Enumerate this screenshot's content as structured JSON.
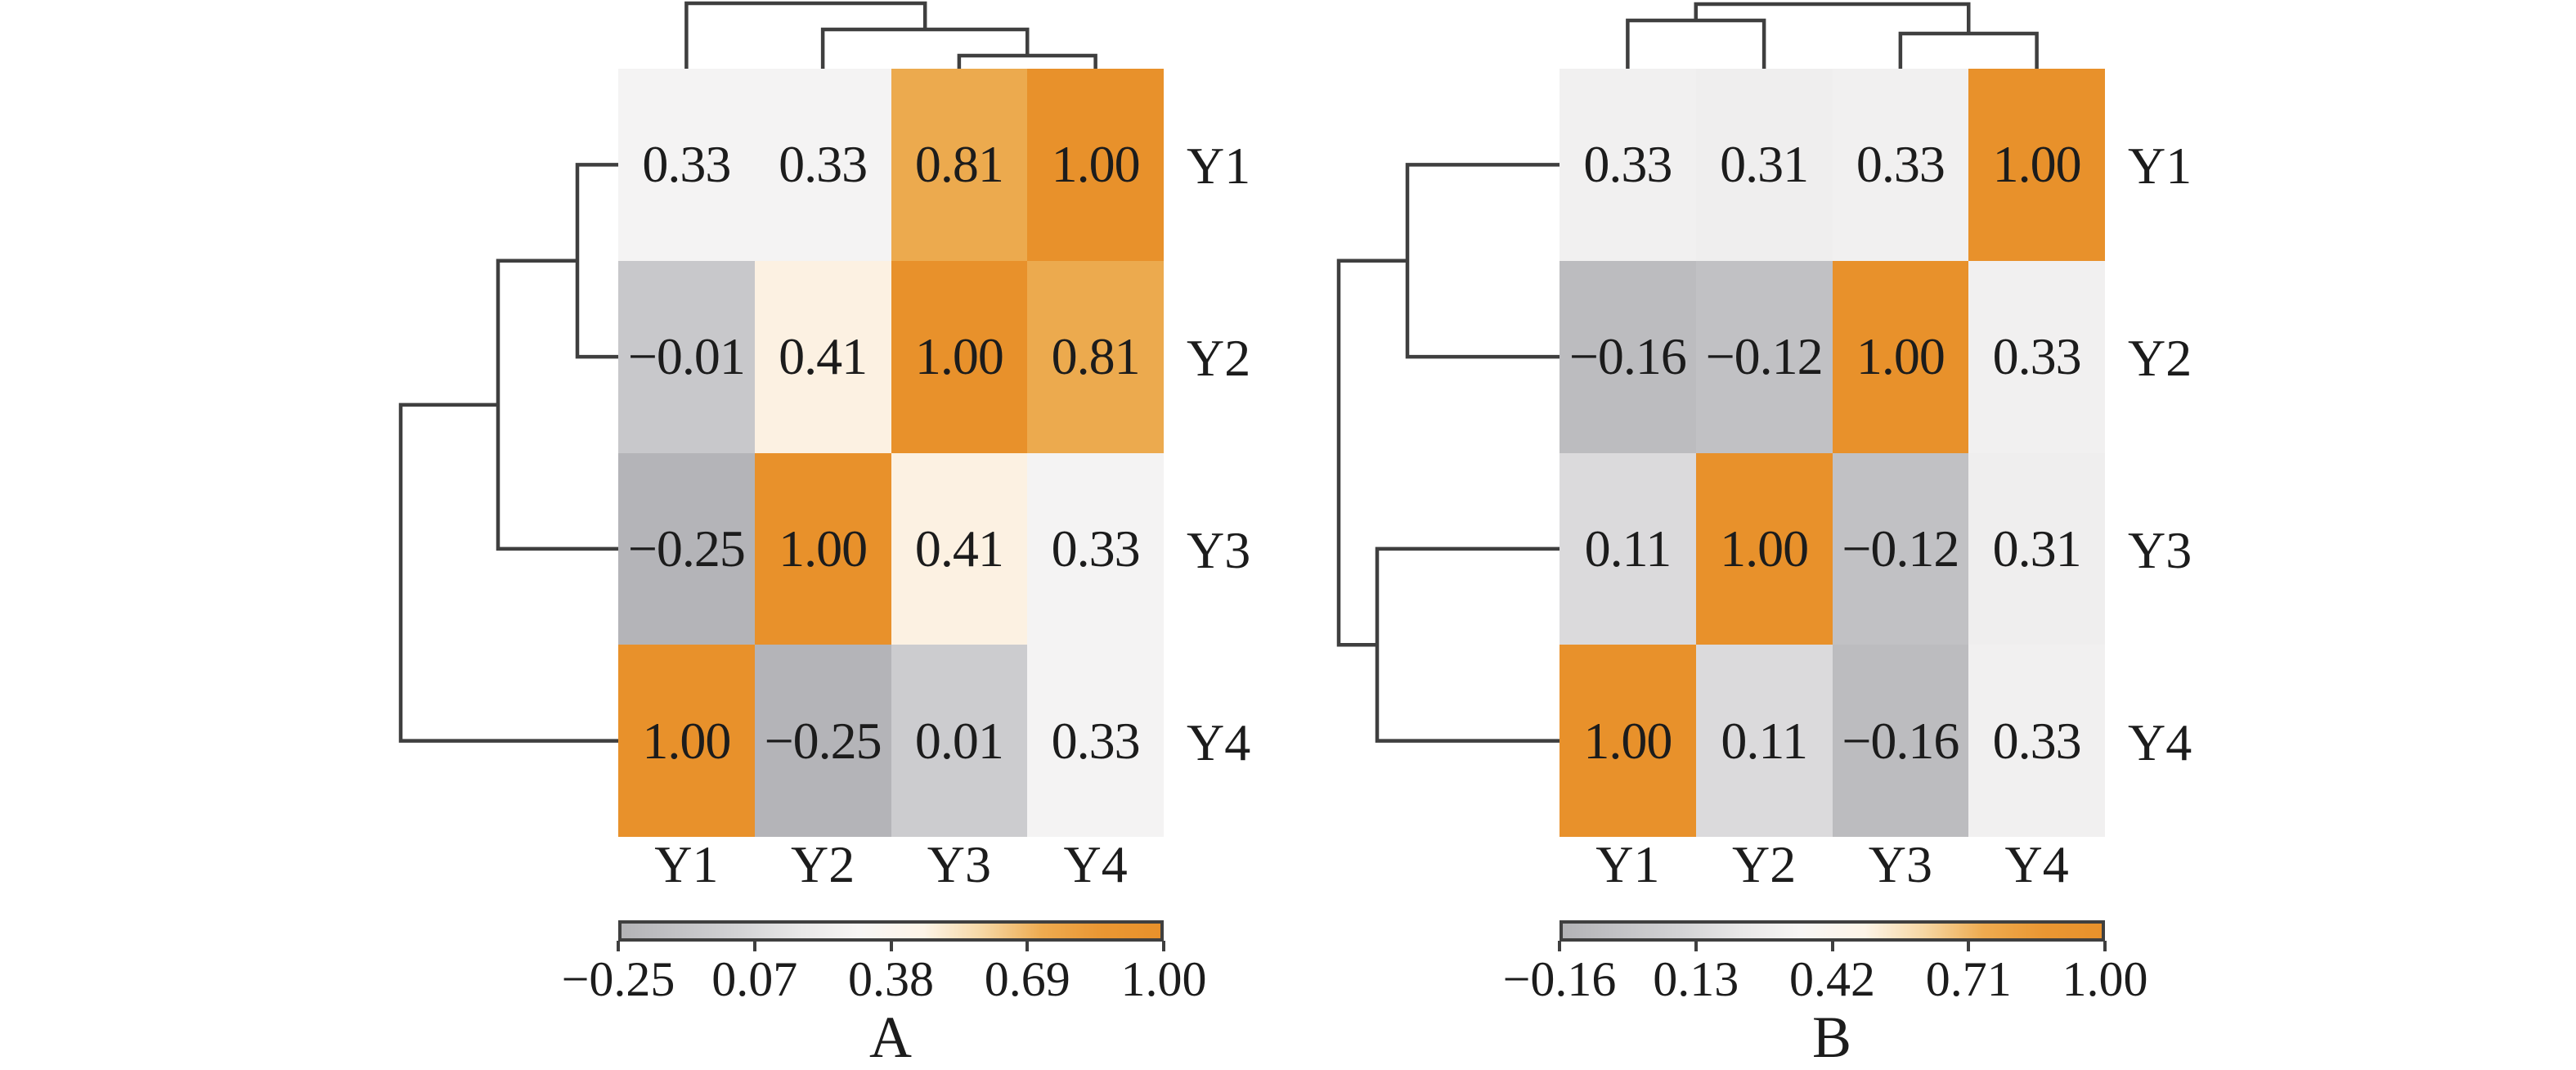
{
  "figure": {
    "background": "#ffffff",
    "line_color": "#3f3f3f",
    "text_color": "#1c1c1c",
    "colorbar_gradient": [
      "#b3b3b6",
      "#c3c3c6",
      "#d3d3d5",
      "#e8e7e7",
      "#f7f5f4",
      "#fdf4e7",
      "#f6d7a4",
      "#eeab50",
      "#ea9733",
      "#e8912b"
    ],
    "panels": [
      {
        "id": "A",
        "label": "A",
        "row_labels": [
          "Y1",
          "Y2",
          "Y3",
          "Y4"
        ],
        "col_labels": [
          "Y1",
          "Y2",
          "Y3",
          "Y4"
        ],
        "cells": [
          [
            "0.33",
            "0.33",
            "0.81",
            "1.00"
          ],
          [
            "−0.01",
            "0.41",
            "1.00",
            "0.81"
          ],
          [
            "−0.25",
            "1.00",
            "0.41",
            "0.33"
          ],
          [
            "1.00",
            "−0.25",
            "0.01",
            "0.33"
          ]
        ],
        "value_colors": {
          "1.00": "#e8912b",
          "0.81": "#ecaa4e",
          "0.41": "#fcf1e2",
          "0.33": "#f4f3f3",
          "0.01": "#cccccf",
          "−0.01": "#c8c8cb",
          "−0.25": "#b4b4b8"
        },
        "colorbar_ticks": [
          "−0.25",
          "0.07",
          "0.38",
          "0.69",
          "1.00"
        ]
      },
      {
        "id": "B",
        "label": "B",
        "row_labels": [
          "Y1",
          "Y2",
          "Y3",
          "Y4"
        ],
        "col_labels": [
          "Y1",
          "Y2",
          "Y3",
          "Y4"
        ],
        "cells": [
          [
            "0.33",
            "0.31",
            "0.33",
            "1.00"
          ],
          [
            "−0.16",
            "−0.12",
            "1.00",
            "0.33"
          ],
          [
            "0.11",
            "1.00",
            "−0.12",
            "0.31"
          ],
          [
            "1.00",
            "0.11",
            "−0.16",
            "0.33"
          ]
        ],
        "value_colors": {
          "1.00": "#e8912b",
          "0.33": "#f1f0f0",
          "0.31": "#efeeee",
          "0.11": "#dbdadc",
          "−0.12": "#c1c1c4",
          "−0.16": "#bcbcbf"
        },
        "colorbar_ticks": [
          "−0.16",
          "0.13",
          "0.42",
          "0.71",
          "1.00"
        ]
      }
    ]
  },
  "chart_data": [
    {
      "type": "heatmap",
      "panel": "A",
      "title": "A",
      "rows": [
        "Y1",
        "Y2",
        "Y3",
        "Y4"
      ],
      "cols": [
        "Y1",
        "Y2",
        "Y3",
        "Y4"
      ],
      "values": [
        [
          0.33,
          0.33,
          0.81,
          1.0
        ],
        [
          -0.01,
          0.41,
          1.0,
          0.81
        ],
        [
          -0.25,
          1.0,
          0.41,
          0.33
        ],
        [
          1.0,
          -0.25,
          0.01,
          0.33
        ]
      ],
      "cell_text_visible": true,
      "colorbar_ticks": [
        -0.25,
        0.07,
        0.38,
        0.69,
        1.0
      ],
      "color_scale": {
        "low": "#b4b4b8",
        "mid": "#ffffff",
        "high": "#e8912b",
        "domain": [
          -0.25,
          1.0
        ]
      },
      "row_dendrogram": "(((Y1,Y2),Y3),Y4)",
      "col_dendrogram": "(Y1,(Y2,(Y3,Y4)))",
      "legend_position": "bottom"
    },
    {
      "type": "heatmap",
      "panel": "B",
      "title": "B",
      "rows": [
        "Y1",
        "Y2",
        "Y3",
        "Y4"
      ],
      "cols": [
        "Y1",
        "Y2",
        "Y3",
        "Y4"
      ],
      "values": [
        [
          0.33,
          0.31,
          0.33,
          1.0
        ],
        [
          -0.16,
          -0.12,
          1.0,
          0.33
        ],
        [
          0.11,
          1.0,
          -0.12,
          0.31
        ],
        [
          1.0,
          0.11,
          -0.16,
          0.33
        ]
      ],
      "cell_text_visible": true,
      "colorbar_ticks": [
        -0.16,
        0.13,
        0.42,
        0.71,
        1.0
      ],
      "color_scale": {
        "low": "#bcbcbf",
        "mid": "#ffffff",
        "high": "#e8912b",
        "domain": [
          -0.16,
          1.0
        ]
      },
      "row_dendrogram": "((Y1,Y2),(Y3,Y4))",
      "col_dendrogram": "((Y1,Y2),(Y3,Y4))",
      "legend_position": "bottom"
    }
  ]
}
